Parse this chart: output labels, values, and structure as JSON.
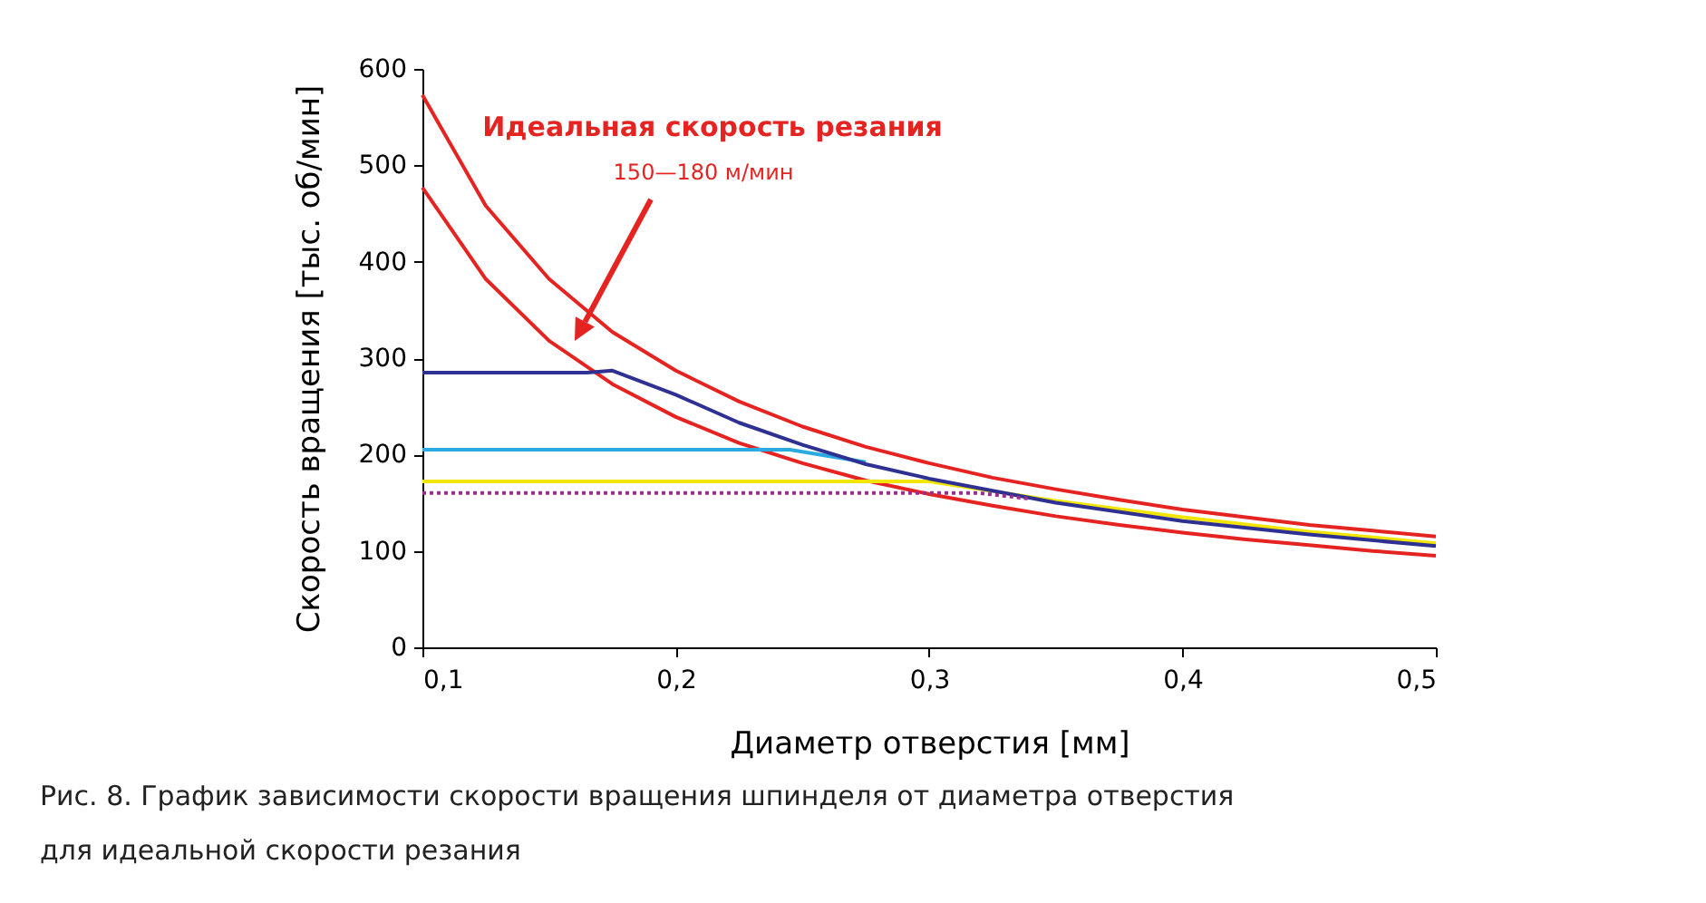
{
  "chart_data": {
    "type": "line",
    "xlabel": "Диаметр отверстия [мм]",
    "ylabel": "Скорость вращения [тыс. об/мин]",
    "xlim": [
      0.1,
      0.5
    ],
    "xticks": [
      {
        "value": 0.1,
        "label": "0,1"
      },
      {
        "value": 0.2,
        "label": "0,2"
      },
      {
        "value": 0.3,
        "label": "0,3"
      },
      {
        "value": 0.4,
        "label": "0,4"
      },
      {
        "value": 0.5,
        "label": "0,5"
      }
    ],
    "ylim": [
      0,
      600
    ],
    "yticks": [
      0,
      100,
      200,
      300,
      400,
      500,
      600
    ],
    "grid": false,
    "marker": "none",
    "series": [
      {
        "color": "#e52421",
        "x": [
          0.1,
          0.125,
          0.15,
          0.175,
          0.2,
          0.225,
          0.25,
          0.275,
          0.3,
          0.325,
          0.35,
          0.375,
          0.4,
          0.425,
          0.45,
          0.475,
          0.5
        ],
        "values": [
          573,
          458,
          382,
          327,
          287,
          255,
          229,
          208,
          191,
          176,
          164,
          153,
          143,
          135,
          127,
          121,
          115
        ]
      },
      {
        "color": "#e52421",
        "x": [
          0.1,
          0.125,
          0.15,
          0.175,
          0.2,
          0.225,
          0.25,
          0.275,
          0.3,
          0.325,
          0.35,
          0.375,
          0.4,
          0.425,
          0.45,
          0.475,
          0.5
        ],
        "values": [
          477,
          382,
          318,
          273,
          239,
          212,
          191,
          173,
          159,
          147,
          136,
          127,
          119,
          112,
          106,
          100,
          95
        ]
      },
      {
        "color": "#f2e600",
        "line_style": "solid",
        "x": [
          0.1,
          0.3,
          0.35,
          0.4,
          0.45,
          0.5
        ],
        "values": [
          172,
          172,
          152,
          135,
          120,
          108
        ]
      },
      {
        "color": "#29abe2",
        "line_style": "solid",
        "x": [
          0.1,
          0.245,
          0.275
        ],
        "values": [
          205,
          205,
          192
        ]
      },
      {
        "color": "#2e3192",
        "line_style": "solid",
        "x": [
          0.1,
          0.15,
          0.165,
          0.175,
          0.2,
          0.225,
          0.25,
          0.275,
          0.3,
          0.35,
          0.4,
          0.45,
          0.5
        ],
        "values": [
          285,
          285,
          285,
          287,
          262,
          233,
          210,
          190,
          175,
          150,
          131,
          117,
          105
        ]
      },
      {
        "color": "#9b2d8e",
        "line_style": "dotted",
        "x": [
          0.1,
          0.32,
          0.34
        ],
        "values": [
          160,
          160,
          154
        ]
      }
    ],
    "annotations": [
      "Идеальная скорость резания",
      "150—180 м/мин",
      "Рис. 8. График зависимости скорости вращения шпинделя от диаметра отверстия для идеальной скорости резания"
    ]
  }
}
